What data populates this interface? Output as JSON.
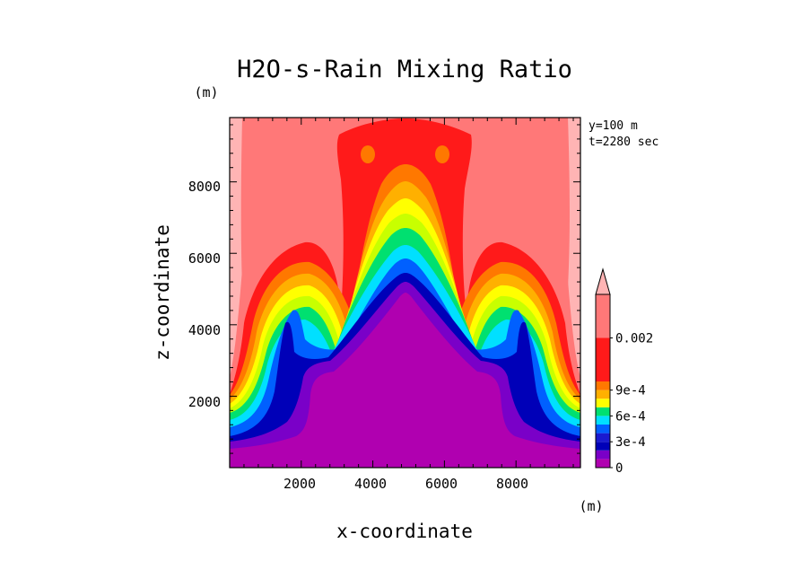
{
  "chart_data": {
    "type": "heatmap",
    "title": "H2O-s-Rain Mixing Ratio",
    "xlabel": "x-coordinate",
    "ylabel": "z-coordinate",
    "x_unit": "(m)",
    "y_unit": "(m)",
    "annotations": [
      "y=100 m",
      "t=2280 sec"
    ],
    "xlim": [
      0,
      9800
    ],
    "ylim": [
      0,
      9800
    ],
    "x_ticks": [
      2000,
      4000,
      6000,
      8000
    ],
    "y_ticks": [
      2000,
      4000,
      6000,
      8000
    ],
    "x_tick_labels": [
      "2000",
      "4000",
      "6000",
      "8000"
    ],
    "y_tick_labels": [
      "2000",
      "4000",
      "6000",
      "8000"
    ],
    "colorbar": {
      "levels": [
        0,
        0.0001,
        0.0002,
        0.0003,
        0.0004,
        0.0005,
        0.0006,
        0.0007,
        0.0008,
        0.0009,
        0.001,
        0.002
      ],
      "tick_labels": [
        "0",
        "3e-4",
        "6e-4",
        "9e-4",
        "0.002"
      ],
      "tick_values": [
        0,
        0.0003,
        0.0006,
        0.0009,
        0.002
      ],
      "colors": [
        "#b000b0",
        "#7a00c8",
        "#1a1ad0",
        "#0000b8",
        "#0060ff",
        "#00e0ff",
        "#00e070",
        "#c8ff00",
        "#ffff00",
        "#ffb000",
        "#ff7800",
        "#ff1a1a",
        "#ff7878",
        "#ffb4b4"
      ],
      "extend": "max"
    }
  }
}
